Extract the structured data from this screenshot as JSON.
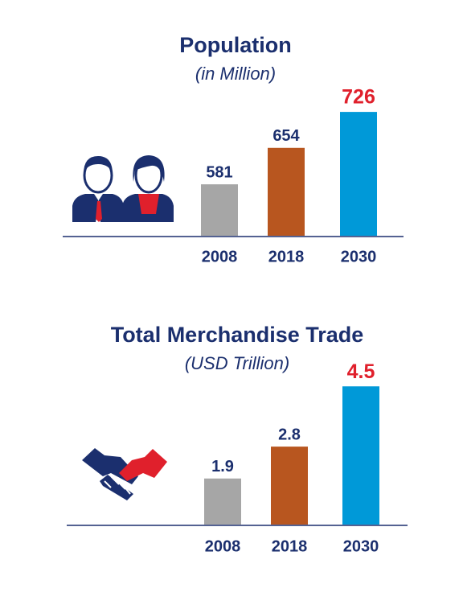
{
  "chart_data": [
    {
      "type": "bar",
      "title": "Population",
      "subtitle": "(in Million)",
      "categories": [
        "2008",
        "2018",
        "2030"
      ],
      "values": [
        581,
        654,
        726
      ],
      "colors": [
        "#a6a6a6",
        "#b8561f",
        "#0099d8"
      ],
      "label_colors": [
        "#1b2f6e",
        "#1b2f6e",
        "#e0202c"
      ],
      "ylim": [
        478,
        760
      ]
    },
    {
      "type": "bar",
      "title": "Total Merchandise Trade",
      "subtitle": "(USD Trillion)",
      "categories": [
        "2008",
        "2018",
        "2030"
      ],
      "values": [
        1.9,
        2.8,
        4.5
      ],
      "colors": [
        "#a6a6a6",
        "#b8561f",
        "#0099d8"
      ],
      "label_colors": [
        "#1b2f6e",
        "#1b2f6e",
        "#e0202c"
      ],
      "ylim": [
        0.6,
        4.8
      ]
    }
  ]
}
